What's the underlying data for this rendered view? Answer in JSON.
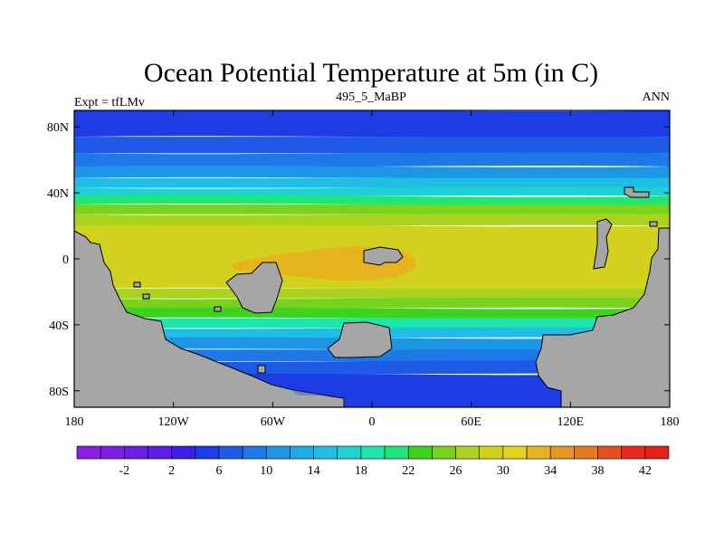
{
  "figure": {
    "title": "Ocean Potential Temperature at 5m (in C)",
    "left_string": "Expt = tfLMv",
    "center_string": "495_5_MaBP",
    "right_string": "ANN"
  },
  "axes": {
    "x_ticks": [
      {
        "lon": -180,
        "label": "180"
      },
      {
        "lon": -120,
        "label": "120W"
      },
      {
        "lon": -60,
        "label": "60W"
      },
      {
        "lon": 0,
        "label": "0"
      },
      {
        "lon": 60,
        "label": "60E"
      },
      {
        "lon": 120,
        "label": "120E"
      },
      {
        "lon": 180,
        "label": "180"
      }
    ],
    "y_ticks": [
      {
        "lat": 80,
        "label": "80N"
      },
      {
        "lat": 40,
        "label": "40N"
      },
      {
        "lat": 0,
        "label": "0"
      },
      {
        "lat": -40,
        "label": "40S"
      },
      {
        "lat": -80,
        "label": "80S"
      }
    ],
    "lon_range": [
      -180,
      180
    ],
    "lat_range": [
      -90,
      90
    ]
  },
  "colorbar": {
    "colors": [
      "#8c1ee6",
      "#7a1ee6",
      "#6a1ee6",
      "#5a1ee6",
      "#3c1ee6",
      "#1e3ce6",
      "#1e5ae6",
      "#1e78e6",
      "#1e96e6",
      "#1eaae6",
      "#1ebee6",
      "#1ed2d2",
      "#1ee6aa",
      "#1ee678",
      "#3cd21e",
      "#78d21e",
      "#aad21e",
      "#d2d21e",
      "#e6d21e",
      "#e6b41e",
      "#e6961e",
      "#e6781e",
      "#e6501e",
      "#e6281e",
      "#e61e1e"
    ],
    "labels": [
      {
        "index": 2,
        "text": "-2"
      },
      {
        "index": 4,
        "text": "2"
      },
      {
        "index": 6,
        "text": "6"
      },
      {
        "index": 8,
        "text": "10"
      },
      {
        "index": 10,
        "text": "14"
      },
      {
        "index": 12,
        "text": "18"
      },
      {
        "index": 14,
        "text": "22"
      },
      {
        "index": 16,
        "text": "26"
      },
      {
        "index": 18,
        "text": "30"
      },
      {
        "index": 20,
        "text": "34"
      },
      {
        "index": 22,
        "text": "38"
      },
      {
        "index": 24,
        "text": "42"
      }
    ]
  },
  "field_colors": {
    "n80": "#1e3ce6",
    "n70": "#1e5ae6",
    "n60": "#1e78e6",
    "n52": "#1e96e6",
    "n45": "#1ebee6",
    "n40": "#1ed2d2",
    "n35": "#1ee678",
    "n30": "#78d21e",
    "n24": "#aad21e",
    "eq": "#d2d21e",
    "warm": "#e6b41e",
    "s20": "#aad21e",
    "s30": "#78d21e",
    "s36": "#3cd21e",
    "s42": "#1ee6aa",
    "s50": "#1ebee6",
    "s58": "#1e96e6",
    "s66": "#1e78e6",
    "s74": "#1e5ae6",
    "s80": "#1e3ce6"
  },
  "land_color": "#a6a6a6",
  "land_regions": [
    "west-continent",
    "east-continent",
    "north-island",
    "equatorial-island",
    "southern-island",
    "southern-landmass"
  ]
}
